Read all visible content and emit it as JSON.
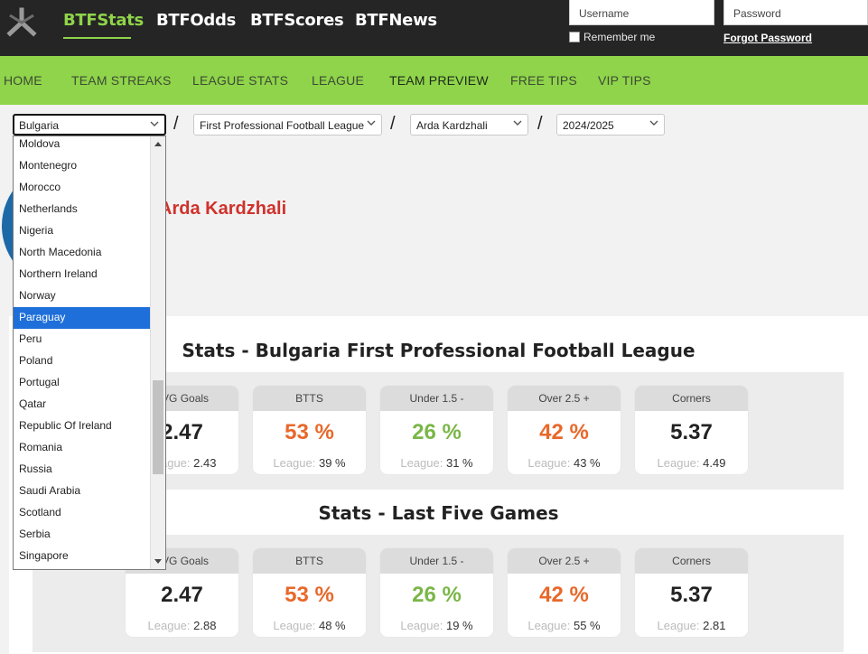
{
  "header": {
    "brands": [
      "BTFStats",
      "BTFOdds",
      "BTFScores",
      "BTFNews"
    ],
    "username_placeholder": "Username",
    "password_placeholder": "Password",
    "remember_label": "Remember me",
    "forgot_label": "Forgot Password"
  },
  "nav": [
    "HOME",
    "TEAM STREAKS",
    "LEAGUE STATS",
    "LEAGUE",
    "TEAM PREVIEW",
    "FREE TIPS",
    "VIP TIPS"
  ],
  "selects": {
    "country": "Bulgaria",
    "league": "First Professional Football League",
    "team": "Arda Kardzhali",
    "season": "2024/2025"
  },
  "team_name": "Arda Kardzhali",
  "dropdown": {
    "items": [
      "Moldova",
      "Montenegro",
      "Morocco",
      "Netherlands",
      "Nigeria",
      "North Macedonia",
      "Northern Ireland",
      "Norway",
      "Paraguay",
      "Peru",
      "Poland",
      "Portugal",
      "Qatar",
      "Republic Of Ireland",
      "Romania",
      "Russia",
      "Saudi Arabia",
      "Scotland",
      "Serbia",
      "Singapore"
    ],
    "selected": "Paraguay"
  },
  "sections": [
    {
      "title": "Stats - Bulgaria First Professional Football League",
      "cards": [
        {
          "head": "AVG Goals",
          "value": "2.47",
          "league_label": "League:",
          "league_value": "2.43"
        },
        {
          "head": "BTTS",
          "value": "53 %",
          "league_label": "League:",
          "league_value": "39 %"
        },
        {
          "head": "Under 1.5 -",
          "value": "26 %",
          "league_label": "League:",
          "league_value": "31 %"
        },
        {
          "head": "Over 2.5 +",
          "value": "42 %",
          "league_label": "League:",
          "league_value": "43 %"
        },
        {
          "head": "Corners",
          "value": "5.37",
          "league_label": "League:",
          "league_value": "4.49"
        }
      ]
    },
    {
      "title": "Stats - Last Five Games",
      "cards": [
        {
          "head": "AVG Goals",
          "value": "2.47",
          "league_label": "League:",
          "league_value": "2.88"
        },
        {
          "head": "BTTS",
          "value": "53 %",
          "league_label": "League:",
          "league_value": "48 %"
        },
        {
          "head": "Under 1.5 -",
          "value": "26 %",
          "league_label": "League:",
          "league_value": "19 %"
        },
        {
          "head": "Over 2.5 +",
          "value": "42 %",
          "league_label": "League:",
          "league_value": "55 %"
        },
        {
          "head": "Corners",
          "value": "5.37",
          "league_label": "League:",
          "league_value": "2.81"
        }
      ]
    }
  ],
  "colors": {
    "accent_green": "#8fd44a",
    "header_dark": "#252525",
    "team_red": "#d0322c",
    "orange": "#e8682a",
    "green": "#7ab648",
    "selected_blue": "#1e6fd9"
  }
}
